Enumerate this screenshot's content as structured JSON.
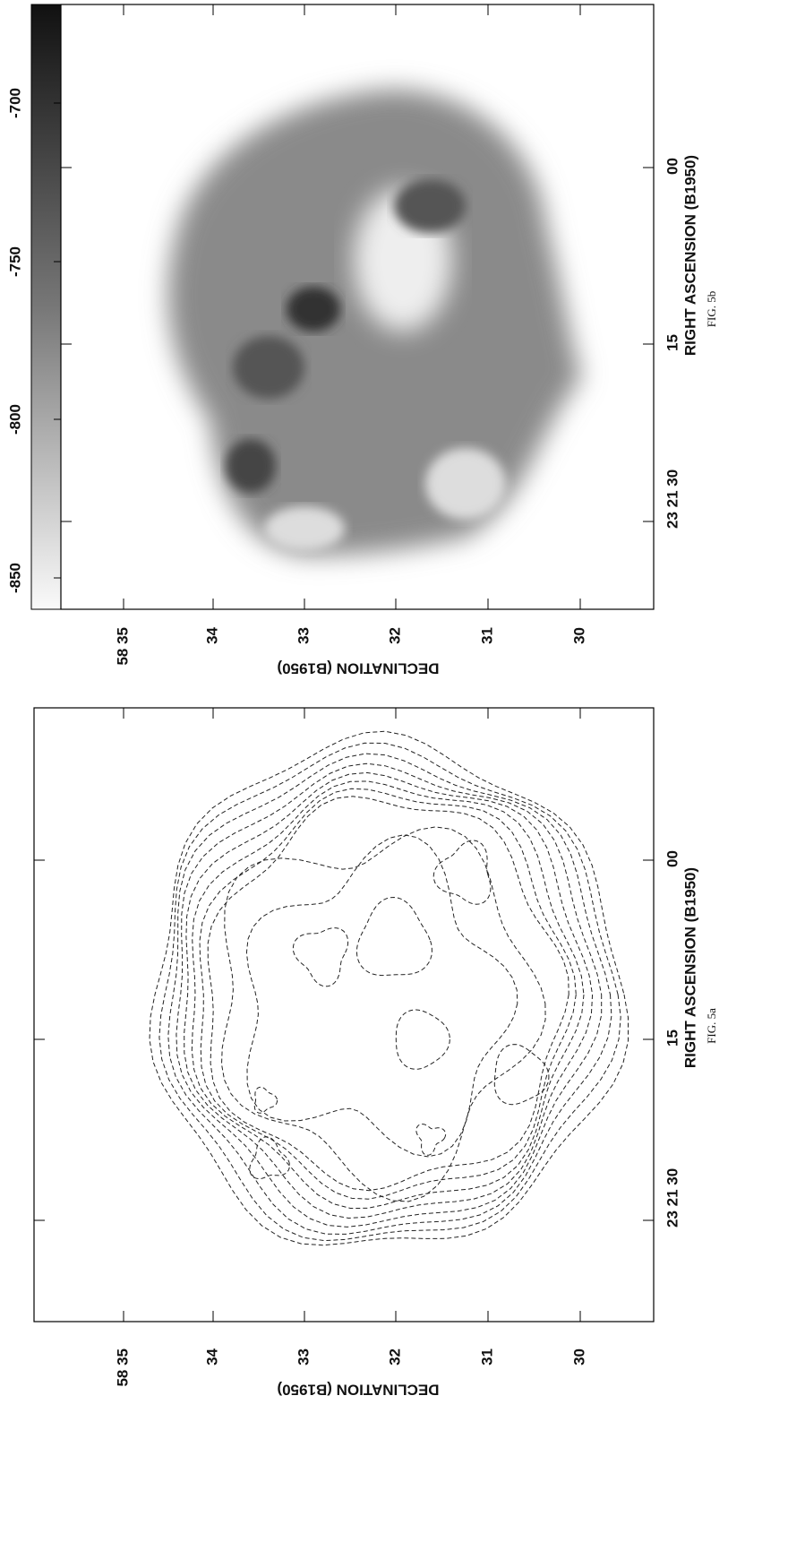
{
  "figures": [
    {
      "caption": "FIG. 5b",
      "colorbar_ticks": [
        "-700",
        "-750",
        "-800",
        "-850"
      ],
      "ra_label": "RIGHT ASCENSION (B1950)",
      "dec_label": "DECLINATION (B1950)",
      "ra_ticks": [
        "23 21 30",
        "15",
        "00"
      ],
      "dec_ticks": [
        "58 35",
        "34",
        "33",
        "32",
        "31",
        "30"
      ]
    },
    {
      "caption": "FIG. 5a",
      "ra_label": "RIGHT ASCENSION (B1950)",
      "dec_label": "DECLINATION (B1950)",
      "ra_ticks": [
        "23 21 30",
        "15",
        "00"
      ],
      "dec_ticks": [
        "58 35",
        "34",
        "33",
        "32",
        "31",
        "30"
      ]
    }
  ]
}
